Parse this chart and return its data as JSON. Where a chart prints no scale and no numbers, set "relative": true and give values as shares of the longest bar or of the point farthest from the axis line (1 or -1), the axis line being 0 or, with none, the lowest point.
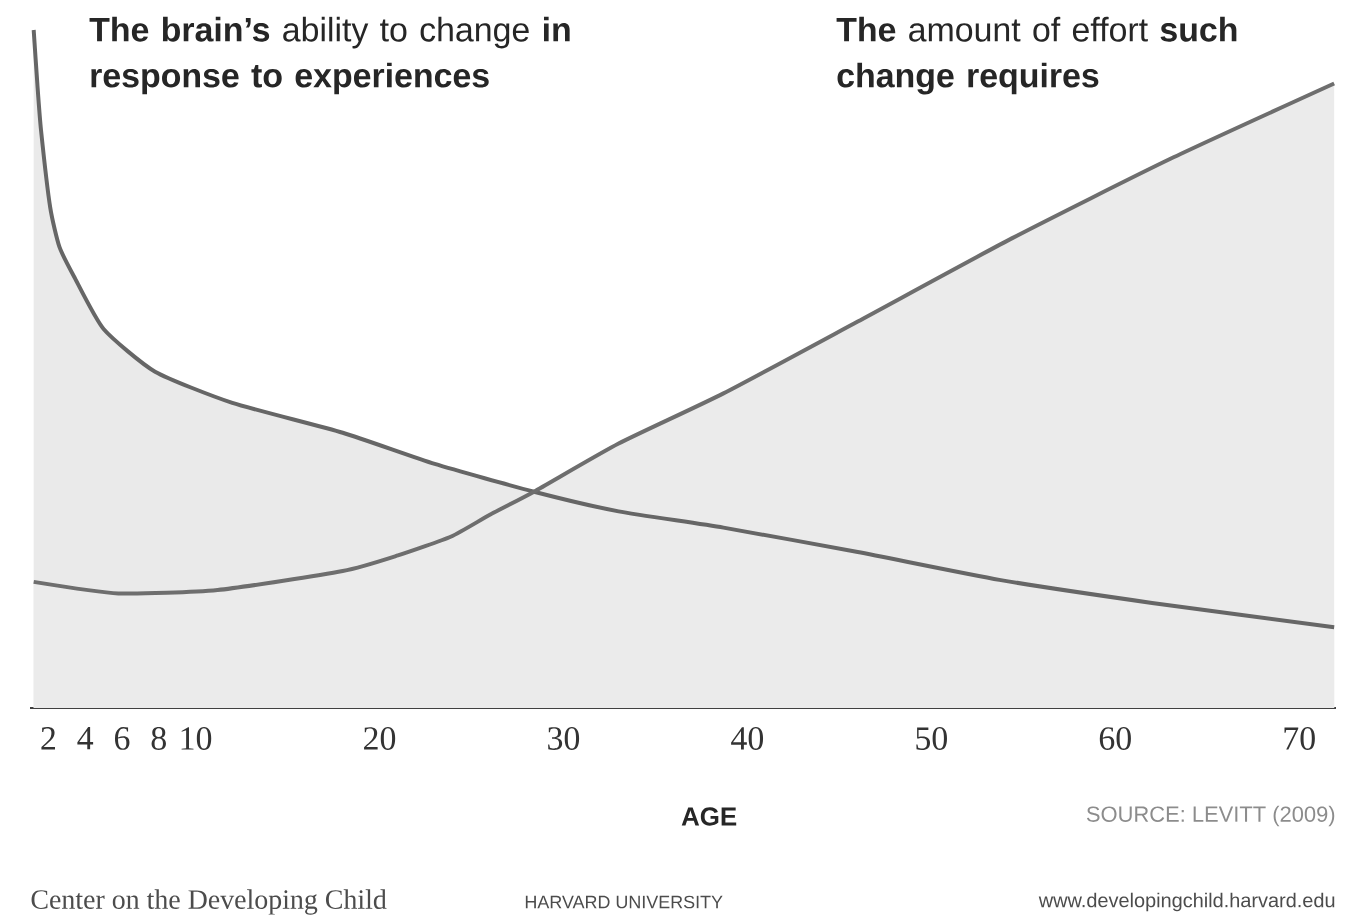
{
  "chart_data": {
    "type": "area",
    "relative": true,
    "xlabel": "AGE",
    "xlim": [
      1,
      72
    ],
    "xticks": [
      2,
      4,
      6,
      8,
      10,
      20,
      30,
      40,
      50,
      60,
      70
    ],
    "grid": false,
    "series": [
      {
        "name": "**The brain’s** ability to change **in response to experiences**",
        "color": "#666666",
        "x": [
          1.2,
          1.4,
          1.6,
          2.1,
          2.6,
          3.4,
          5.0,
          7.8,
          12,
          18,
          23,
          28.4,
          33,
          38.7,
          46,
          53.7,
          62,
          71.9
        ],
        "values": [
          1.0,
          0.92,
          0.852,
          0.738,
          0.68,
          0.636,
          0.559,
          0.496,
          0.45,
          0.406,
          0.36,
          0.319,
          0.29,
          0.266,
          0.23,
          0.189,
          0.155,
          0.119
        ]
      },
      {
        "name": "**The** amount of effort **such change requires**",
        "color": "#6e6e6e",
        "x": [
          1.2,
          5.8,
          11.2,
          18,
          21,
          23.9,
          26,
          28.4,
          33,
          38.7,
          46,
          54.4,
          63,
          71.9
        ],
        "values": [
          0.186,
          0.169,
          0.174,
          0.202,
          0.225,
          0.253,
          0.285,
          0.319,
          0.39,
          0.464,
          0.57,
          0.693,
          0.81,
          0.921
        ]
      }
    ],
    "annotations": [
      "SOURCE: LEVITT (2009)",
      "Center on the Developing Child",
      "HARVARD UNIVERSITY",
      "www.developingchild.harvard.edu"
    ]
  }
}
